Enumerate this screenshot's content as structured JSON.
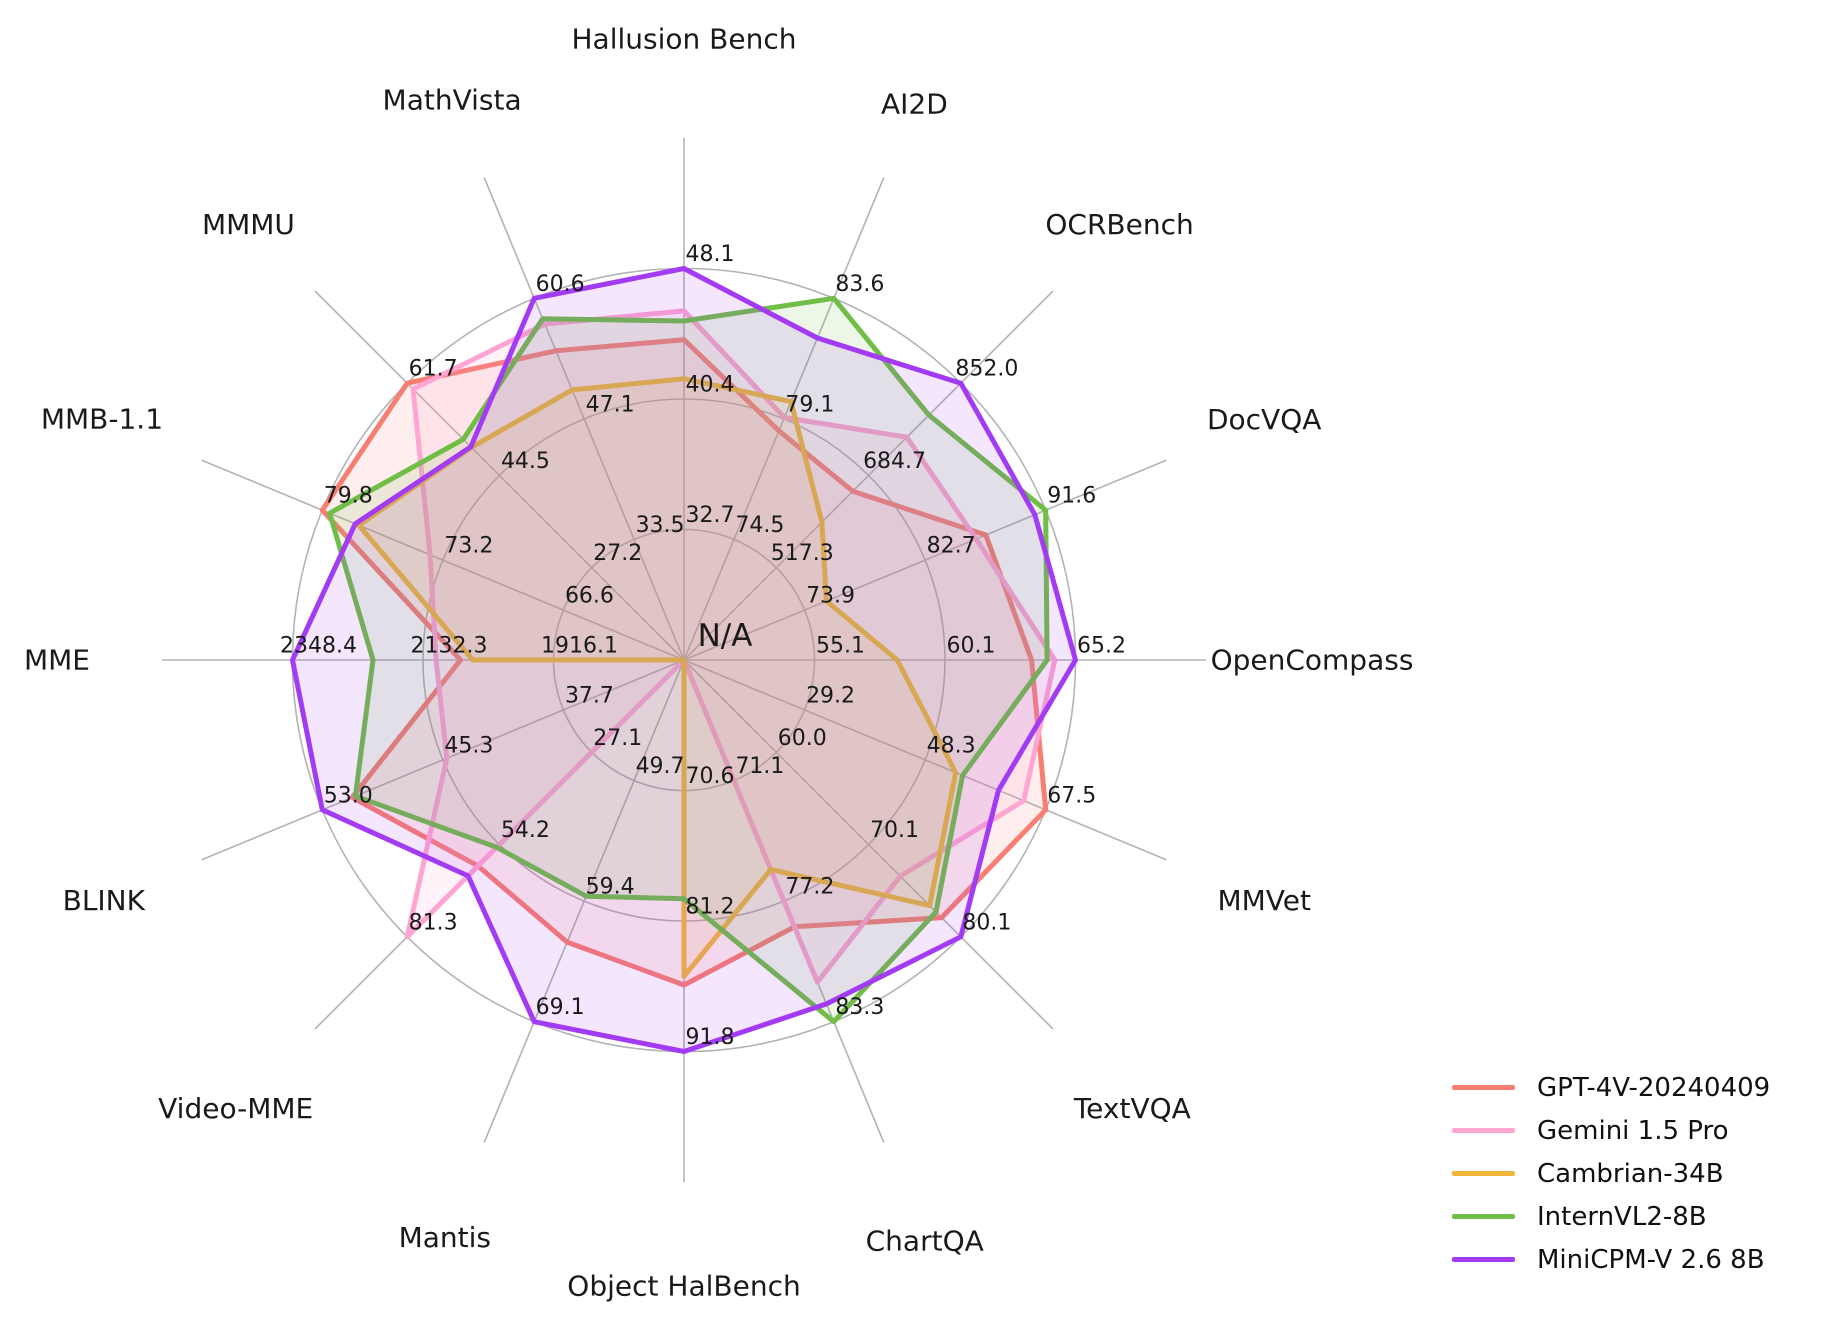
{
  "chart_data": {
    "type": "radar",
    "title": "",
    "center_label": "N/A",
    "grid": true,
    "legend_position": "bottom-right",
    "axes": [
      {
        "label": "Hallusion Bench",
        "ticks": [
          "32.7",
          "40.4",
          "48.1"
        ]
      },
      {
        "label": "AI2D",
        "ticks": [
          "74.5",
          "79.1",
          "83.6"
        ]
      },
      {
        "label": "OCRBench",
        "ticks": [
          "517.3",
          "684.7",
          "852.0"
        ]
      },
      {
        "label": "DocVQA",
        "ticks": [
          "73.9",
          "82.7",
          "91.6"
        ]
      },
      {
        "label": "OpenCompass",
        "ticks": [
          "55.1",
          "60.1",
          "65.2"
        ]
      },
      {
        "label": "MMVet",
        "ticks": [
          "29.2",
          "48.3",
          "67.5"
        ]
      },
      {
        "label": "TextVQA",
        "ticks": [
          "60.0",
          "70.1",
          "80.1"
        ]
      },
      {
        "label": "ChartQA",
        "ticks": [
          "71.1",
          "77.2",
          "83.3"
        ]
      },
      {
        "label": "Object HalBench",
        "ticks": [
          "70.6",
          "81.2",
          "91.8"
        ]
      },
      {
        "label": "Mantis",
        "ticks": [
          "49.7",
          "59.4",
          "69.1"
        ]
      },
      {
        "label": "Video-MME",
        "ticks": [
          "27.1",
          "54.2",
          "81.3"
        ]
      },
      {
        "label": "BLINK",
        "ticks": [
          "37.7",
          "45.3",
          "53.0"
        ]
      },
      {
        "label": "MME",
        "ticks": [
          "1916.1",
          "2132.3",
          "2348.4"
        ]
      },
      {
        "label": "MMB-1.1",
        "ticks": [
          "66.6",
          "73.2",
          "79.8"
        ]
      },
      {
        "label": "MMMU",
        "ticks": [
          "27.2",
          "44.5",
          "61.7"
        ]
      },
      {
        "label": "MathVista",
        "ticks": [
          "33.5",
          "47.1",
          "60.6"
        ]
      }
    ],
    "series": [
      {
        "name": "GPT-4V-20240409",
        "color": "#F97E72",
        "values": [
          43.9,
          78.6,
          656.0,
          87.2,
          63.5,
          67.5,
          78.0,
          78.5,
          86.4,
          62.7,
          60.5,
          51.1,
          2070.2,
          79.8,
          61.7,
          54.7
        ]
      },
      {
        "name": "Gemini 1.5 Pro",
        "color": "#FFA5D3",
        "values": [
          45.6,
          79.1,
          754.0,
          86.5,
          64.4,
          64.0,
          73.5,
          81.3,
          null,
          null,
          81.3,
          45.1,
          2110.6,
          73.9,
          60.6,
          57.7
        ]
      },
      {
        "name": "Cambrian-34B",
        "color": "#F3B63C",
        "values": [
          41.6,
          79.7,
          600.0,
          75.5,
          58.3,
          53.2,
          76.7,
          75.6,
          85.7,
          null,
          null,
          null,
          2049.9,
          77.8,
          49.7,
          50.3
        ]
      },
      {
        "name": "InternVL2-8B",
        "color": "#70BE47",
        "values": [
          45.0,
          83.6,
          794.0,
          91.6,
          64.1,
          54.3,
          77.4,
          83.3,
          79.4,
          59.0,
          55.0,
          50.9,
          2215.1,
          79.4,
          51.2,
          58.3
        ]
      },
      {
        "name": "MiniCPM-V 2.6 8B",
        "color": "#A23BF3",
        "values": [
          48.1,
          82.1,
          852.0,
          90.8,
          65.2,
          60.0,
          80.1,
          82.4,
          91.8,
          69.1,
          63.4,
          53.0,
          2348.4,
          78.0,
          49.8,
          60.6
        ]
      }
    ],
    "style": {
      "grid_color": "#b3b3b3",
      "text_color": "#1a1a1a",
      "fill_opacity": 0.13,
      "line_width": 5
    }
  }
}
